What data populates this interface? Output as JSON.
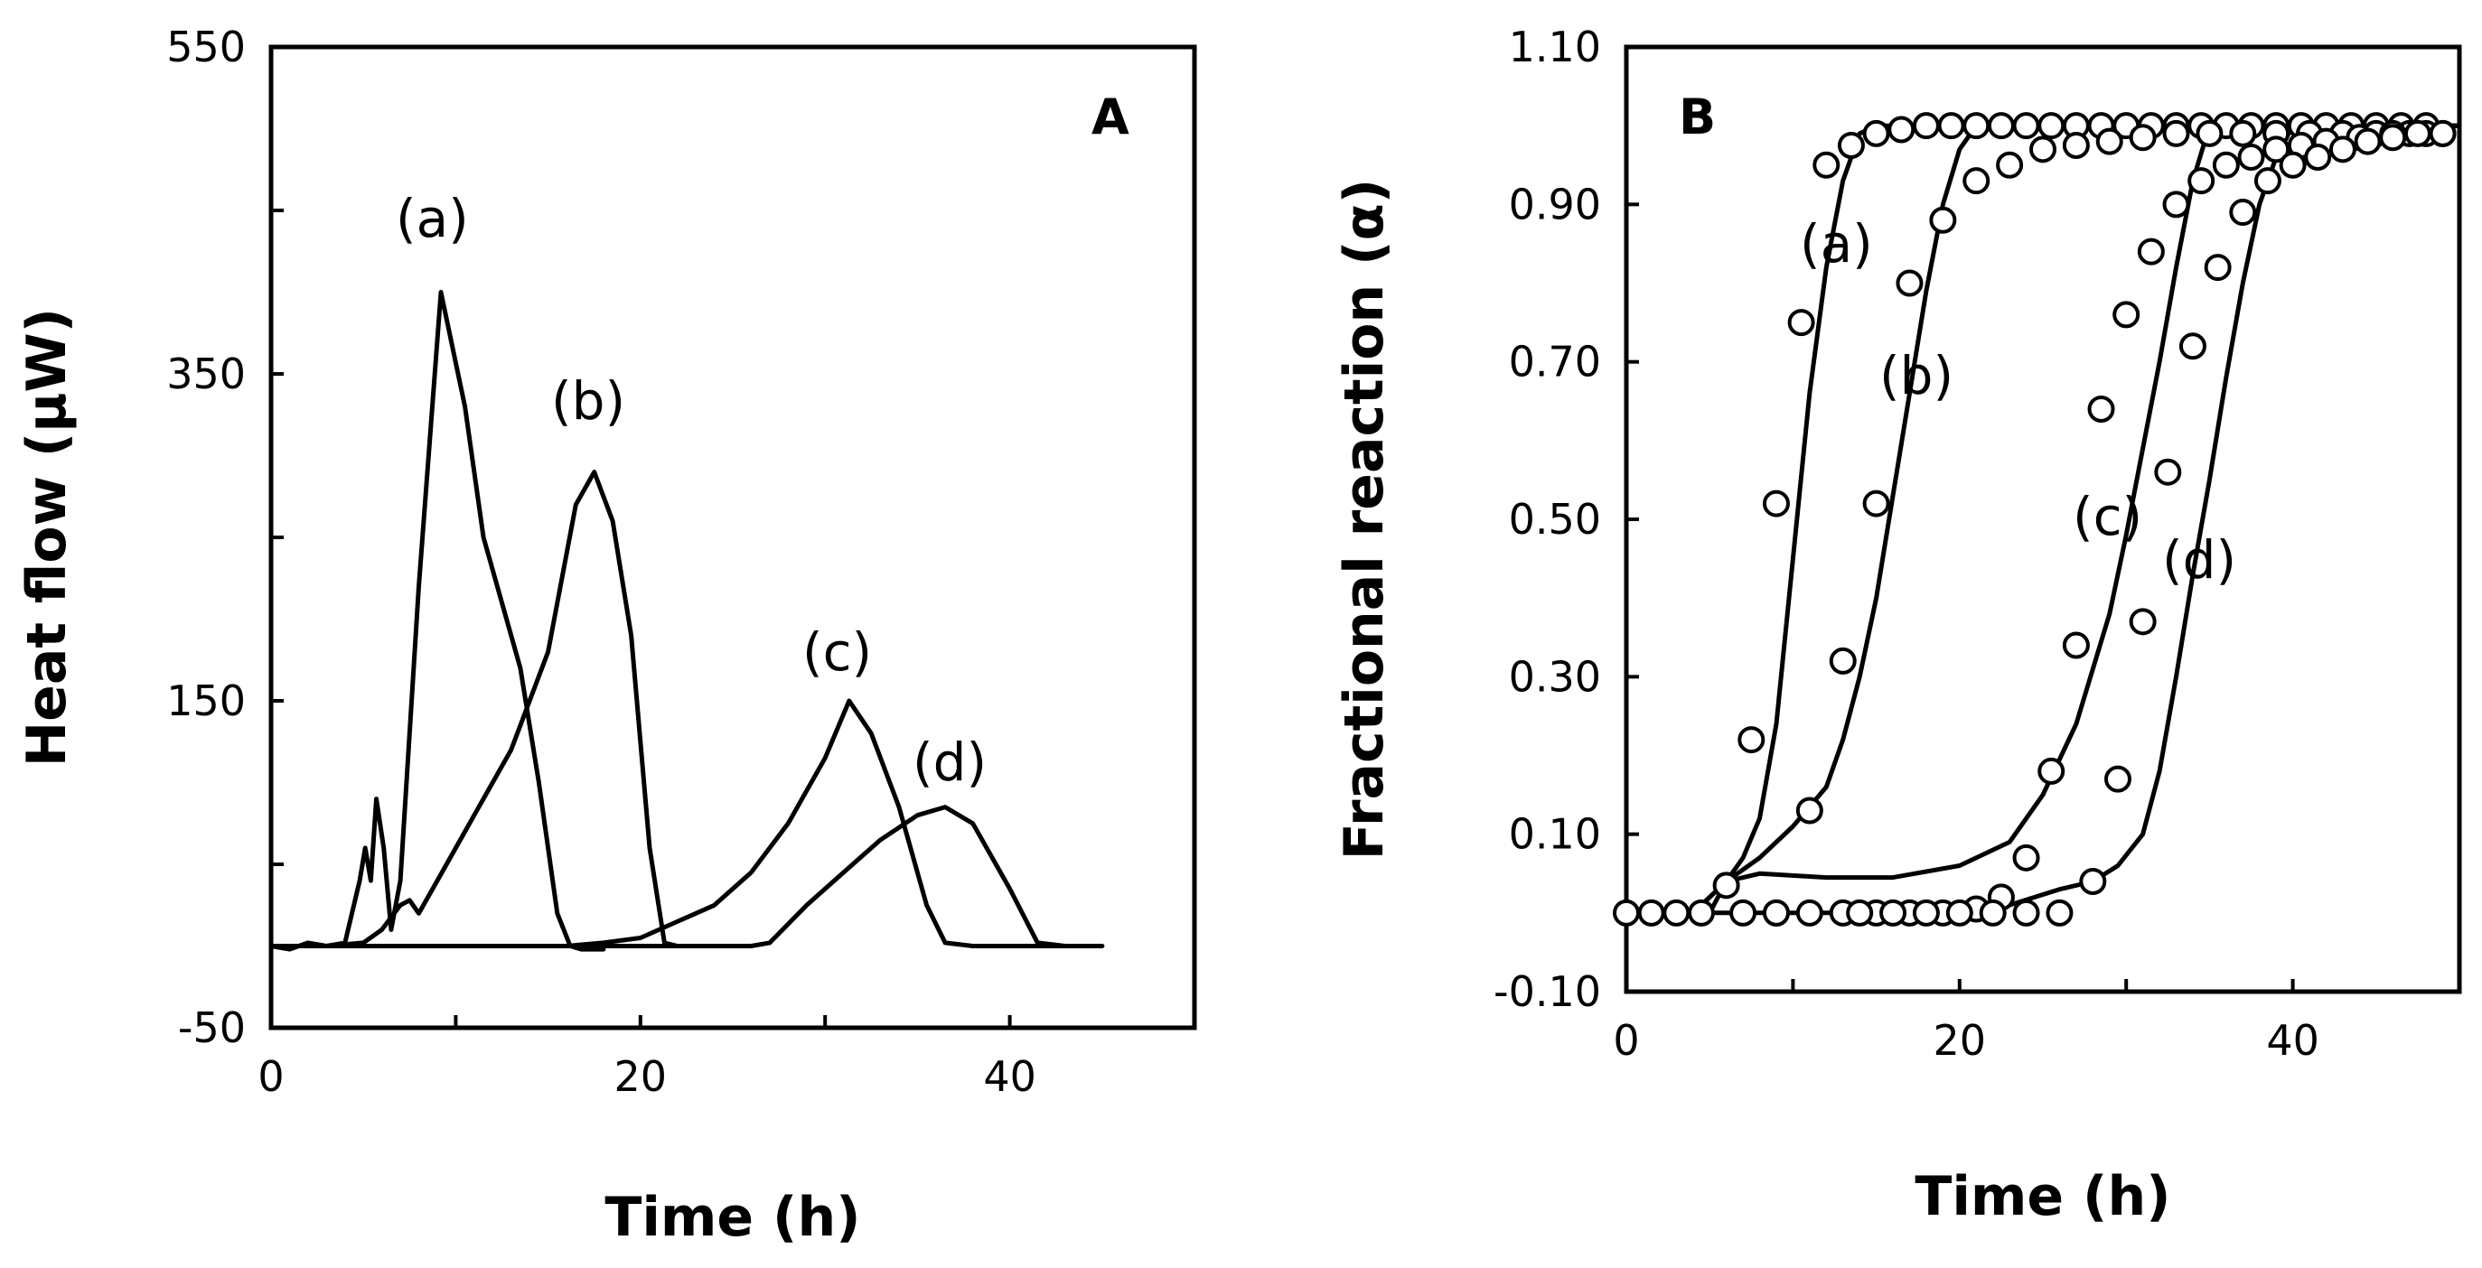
{
  "chart_data": [
    {
      "type": "line",
      "panel": "A",
      "title": "",
      "xlabel": "Time (h)",
      "ylabel": "Heat flow (μW)",
      "xlim": [
        0,
        50
      ],
      "ylim": [
        -50,
        550
      ],
      "xticks": [
        0,
        10,
        20,
        30,
        40,
        50
      ],
      "xtick_labels": [
        "0",
        "",
        "20",
        "",
        "40",
        ""
      ],
      "yticks": [
        -50,
        50,
        150,
        250,
        350,
        450,
        550
      ],
      "ytick_labels": [
        "-50",
        "",
        "150",
        "",
        "350",
        "",
        "550"
      ],
      "series": [
        {
          "name": "(a)",
          "x": [
            0,
            1,
            2,
            3,
            4,
            4.8,
            5.1,
            5.4,
            5.7,
            6.1,
            6.5,
            7,
            8,
            9.2,
            10.5,
            11.5,
            12.5,
            13.5,
            14.5,
            15.5,
            16.2,
            16.8,
            18
          ],
          "y": [
            0,
            -2,
            2,
            0,
            2,
            40,
            60,
            40,
            90,
            60,
            10,
            40,
            220,
            400,
            330,
            250,
            210,
            170,
            100,
            20,
            0,
            -2,
            -2
          ]
        },
        {
          "name": "(b)",
          "x": [
            0,
            3,
            5,
            6,
            7,
            7.5,
            8,
            9,
            11,
            13,
            15,
            16.5,
            17.5,
            18.5,
            19.5,
            20.5,
            21.3,
            22,
            24
          ],
          "y": [
            0,
            0,
            2,
            10,
            25,
            28,
            20,
            40,
            80,
            120,
            180,
            270,
            290,
            260,
            190,
            60,
            2,
            0,
            0
          ]
        },
        {
          "name": "(c)",
          "x": [
            0,
            10,
            16,
            18,
            20,
            22,
            24,
            26,
            28,
            30,
            31.3,
            32.5,
            34,
            35.5,
            36.5,
            38,
            45
          ],
          "y": [
            0,
            0,
            0,
            2,
            5,
            15,
            25,
            45,
            75,
            115,
            150,
            130,
            85,
            25,
            2,
            0,
            0
          ]
        },
        {
          "name": "(d)",
          "x": [
            0,
            10,
            20,
            26,
            27,
            29,
            31,
            33,
            35,
            36.5,
            38,
            40,
            41.5,
            43,
            45
          ],
          "y": [
            0,
            0,
            0,
            0,
            2,
            25,
            45,
            65,
            80,
            85,
            75,
            35,
            2,
            0,
            0
          ]
        }
      ],
      "annotations": [
        "A",
        "(a)",
        "(b)",
        "(c)",
        "(d)"
      ]
    },
    {
      "type": "line",
      "panel": "B",
      "title": "",
      "xlabel": "Time (h)",
      "ylabel": "Fractional reaction (α)",
      "xlim": [
        0,
        50
      ],
      "ylim": [
        -0.1,
        1.1
      ],
      "xticks": [
        0,
        10,
        20,
        30,
        40,
        50
      ],
      "xtick_labels": [
        "0",
        "",
        "20",
        "",
        "40",
        ""
      ],
      "yticks": [
        -0.1,
        0.1,
        0.3,
        0.5,
        0.7,
        0.9,
        1.1
      ],
      "ytick_labels": [
        "-0.10",
        "0.10",
        "0.30",
        "0.50",
        "0.70",
        "0.90",
        "1.10"
      ],
      "series": [
        {
          "name": "(a) model",
          "x": [
            0,
            4,
            5,
            6,
            7,
            8,
            9,
            10,
            11,
            12,
            13,
            14,
            15,
            50
          ],
          "y": [
            0,
            0,
            0.02,
            0.04,
            0.07,
            0.12,
            0.24,
            0.45,
            0.66,
            0.82,
            0.93,
            0.99,
            1.0,
            1.0
          ]
        },
        {
          "name": "(b) model",
          "x": [
            0,
            4,
            6,
            8,
            10,
            12,
            13,
            14,
            15,
            16,
            17,
            18,
            19,
            20,
            21,
            50
          ],
          "y": [
            0,
            0,
            0.04,
            0.07,
            0.11,
            0.16,
            0.22,
            0.3,
            0.4,
            0.53,
            0.66,
            0.79,
            0.9,
            0.97,
            1.0,
            1.0
          ]
        },
        {
          "name": "(c) model",
          "x": [
            0,
            5,
            6,
            8,
            12,
            16,
            20,
            23,
            25,
            27,
            29,
            30,
            31,
            32,
            33,
            34,
            35,
            50
          ],
          "y": [
            0,
            0,
            0.04,
            0.05,
            0.045,
            0.045,
            0.06,
            0.09,
            0.15,
            0.24,
            0.38,
            0.48,
            0.59,
            0.7,
            0.82,
            0.93,
            1.0,
            1.0
          ]
        },
        {
          "name": "(d) model",
          "x": [
            0,
            20,
            23,
            26,
            28,
            29.5,
            31,
            32,
            33,
            34,
            35,
            36,
            37,
            38,
            39,
            40,
            41,
            50
          ],
          "y": [
            0,
            0,
            0.01,
            0.03,
            0.04,
            0.06,
            0.1,
            0.18,
            0.3,
            0.43,
            0.55,
            0.68,
            0.8,
            0.9,
            0.96,
            1.0,
            1.0,
            1.0
          ]
        },
        {
          "name": "(a) data",
          "markers": true,
          "x": [
            0,
            1.5,
            3,
            4.5,
            6,
            7.5,
            9,
            10.5,
            12,
            13.5,
            15,
            16.5,
            18,
            19.5,
            21,
            22.5,
            24,
            25.5,
            27,
            28.5,
            30,
            31.5,
            33,
            34.5,
            36,
            37.5,
            39,
            40.5,
            42,
            43.5,
            45,
            46.5,
            48
          ],
          "y": [
            0,
            0,
            0,
            0,
            0.035,
            0.22,
            0.52,
            0.75,
            0.95,
            0.975,
            0.99,
            0.995,
            1.0,
            1.0,
            1.0,
            1.0,
            1.0,
            1.0,
            1.0,
            1.0,
            1.0,
            1.0,
            1.0,
            1.0,
            1.0,
            1.0,
            1.0,
            1.0,
            1.0,
            1.0,
            1.0,
            1.0,
            1.0
          ]
        },
        {
          "name": "(b) data",
          "markers": true,
          "x": [
            7,
            9,
            11,
            13,
            15,
            17,
            19,
            21,
            23,
            25,
            27,
            29,
            31,
            33,
            35,
            37,
            39,
            41,
            43,
            45,
            47,
            49
          ],
          "y": [
            0,
            0,
            0.13,
            0.32,
            0.52,
            0.8,
            0.88,
            0.93,
            0.95,
            0.97,
            0.975,
            0.98,
            0.985,
            0.99,
            0.99,
            0.99,
            0.99,
            0.99,
            0.99,
            0.99,
            0.99,
            0.99
          ]
        },
        {
          "name": "(c) data",
          "markers": true,
          "x": [
            9,
            11,
            13,
            15,
            17,
            19,
            21,
            22.5,
            24,
            25.5,
            27,
            28.5,
            30,
            31.5,
            33,
            34.5,
            36,
            37.5,
            39,
            40.5,
            42,
            44,
            46,
            48
          ],
          "y": [
            0,
            0,
            0,
            0,
            0,
            0,
            0.005,
            0.02,
            0.07,
            0.18,
            0.34,
            0.64,
            0.76,
            0.84,
            0.9,
            0.93,
            0.95,
            0.96,
            0.97,
            0.975,
            0.98,
            0.985,
            0.99,
            0.99
          ]
        },
        {
          "name": "(d) data",
          "markers": true,
          "x": [
            14,
            16,
            18,
            20,
            22,
            24,
            26,
            28,
            29.5,
            31,
            32.5,
            34,
            35.5,
            37,
            38.5,
            40,
            41.5,
            43,
            44.5,
            46,
            47.5,
            49
          ],
          "y": [
            0,
            0,
            0,
            0,
            0,
            0,
            0,
            0.04,
            0.17,
            0.37,
            0.56,
            0.72,
            0.82,
            0.89,
            0.93,
            0.95,
            0.96,
            0.97,
            0.98,
            0.985,
            0.99,
            0.99
          ]
        }
      ],
      "annotations": [
        "B",
        "(a)",
        "(b)",
        "(c)",
        "(d)"
      ]
    }
  ]
}
